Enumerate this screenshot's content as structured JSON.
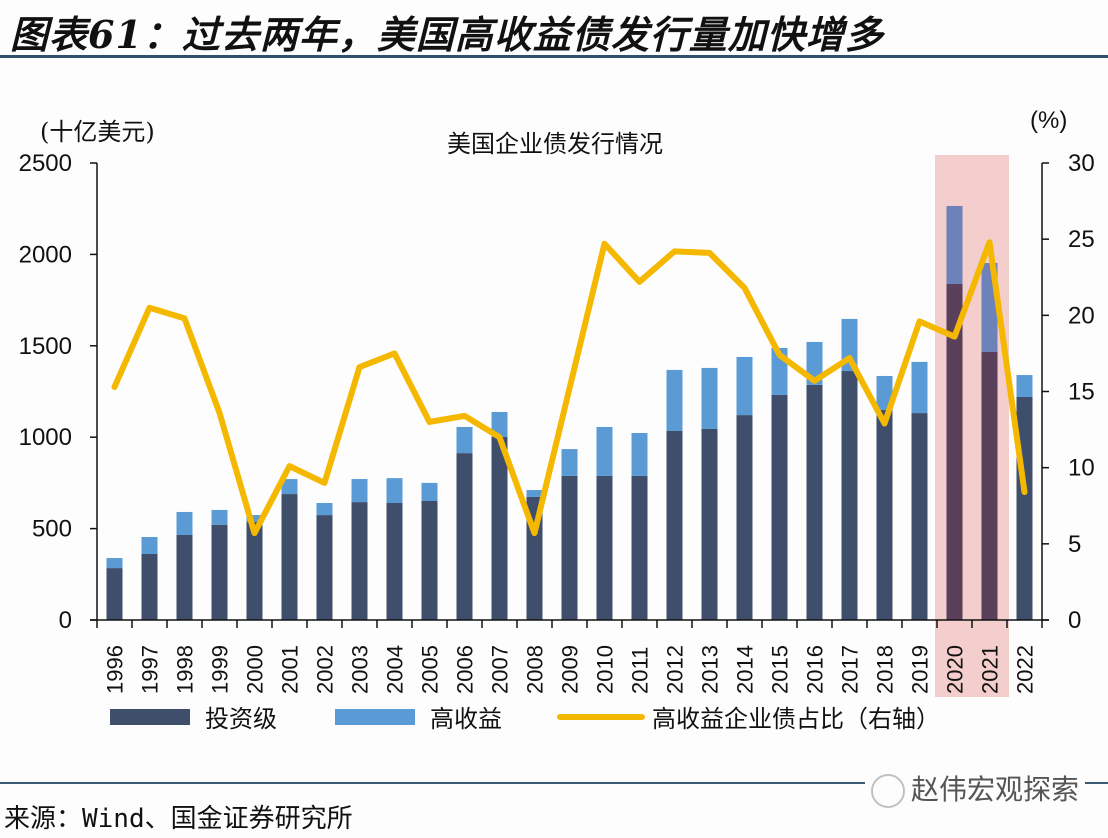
{
  "header": {
    "title": "图表61：过去两年，美国高收益债发行量加快增多"
  },
  "footer": {
    "source": "来源：Wind、国金证券研究所",
    "watermark": "赵伟宏观探索"
  },
  "colors": {
    "investment_grade": "#3f4f6b",
    "high_yield": "#5b9bd5",
    "share_line": "#f5b800",
    "highlight": "#f2c4c4"
  },
  "chart_data": {
    "type": "bar",
    "stacked": true,
    "title": "美国企业债发行情况",
    "ylabel": "(十亿美元)",
    "y2label": "(%)",
    "ylim": [
      0,
      2500
    ],
    "yticks": [
      0,
      500,
      1000,
      1500,
      2000,
      2500
    ],
    "y2lim": [
      0,
      30
    ],
    "y2ticks": [
      0,
      5,
      10,
      15,
      20,
      25,
      30
    ],
    "highlight_categories": [
      "2020",
      "2021"
    ],
    "legend_position": "bottom",
    "categories": [
      "1996",
      "1997",
      "1998",
      "1999",
      "2000",
      "2001",
      "2002",
      "2003",
      "2004",
      "2005",
      "2006",
      "2007",
      "2008",
      "2009",
      "2010",
      "2011",
      "2012",
      "2013",
      "2014",
      "2015",
      "2016",
      "2017",
      "2018",
      "2019",
      "2020",
      "2021",
      "2022"
    ],
    "series": [
      {
        "name": "投资级",
        "type": "bar",
        "axis": "left",
        "values": [
          284,
          361,
          465,
          520,
          536,
          689,
          574,
          645,
          640,
          651,
          913,
          1001,
          673,
          788,
          788,
          788,
          1034,
          1045,
          1121,
          1231,
          1286,
          1362,
          1149,
          1132,
          1838,
          1466,
          1220
        ]
      },
      {
        "name": "高收益",
        "type": "bar",
        "axis": "left",
        "values": [
          55,
          93,
          126,
          82,
          38,
          82,
          66,
          126,
          136,
          99,
          143,
          137,
          38,
          147,
          268,
          235,
          334,
          334,
          318,
          257,
          235,
          285,
          186,
          280,
          427,
          487,
          120
        ]
      },
      {
        "name": "高收益企业债占比（右轴）",
        "type": "line",
        "axis": "right",
        "values": [
          15.3,
          20.5,
          19.8,
          13.6,
          5.7,
          10.1,
          9.0,
          16.6,
          17.5,
          13.0,
          13.4,
          12.0,
          5.7,
          15.2,
          24.7,
          22.2,
          24.2,
          24.1,
          21.8,
          17.4,
          15.7,
          17.2,
          12.9,
          19.6,
          18.6,
          24.8,
          8.4
        ]
      }
    ]
  }
}
